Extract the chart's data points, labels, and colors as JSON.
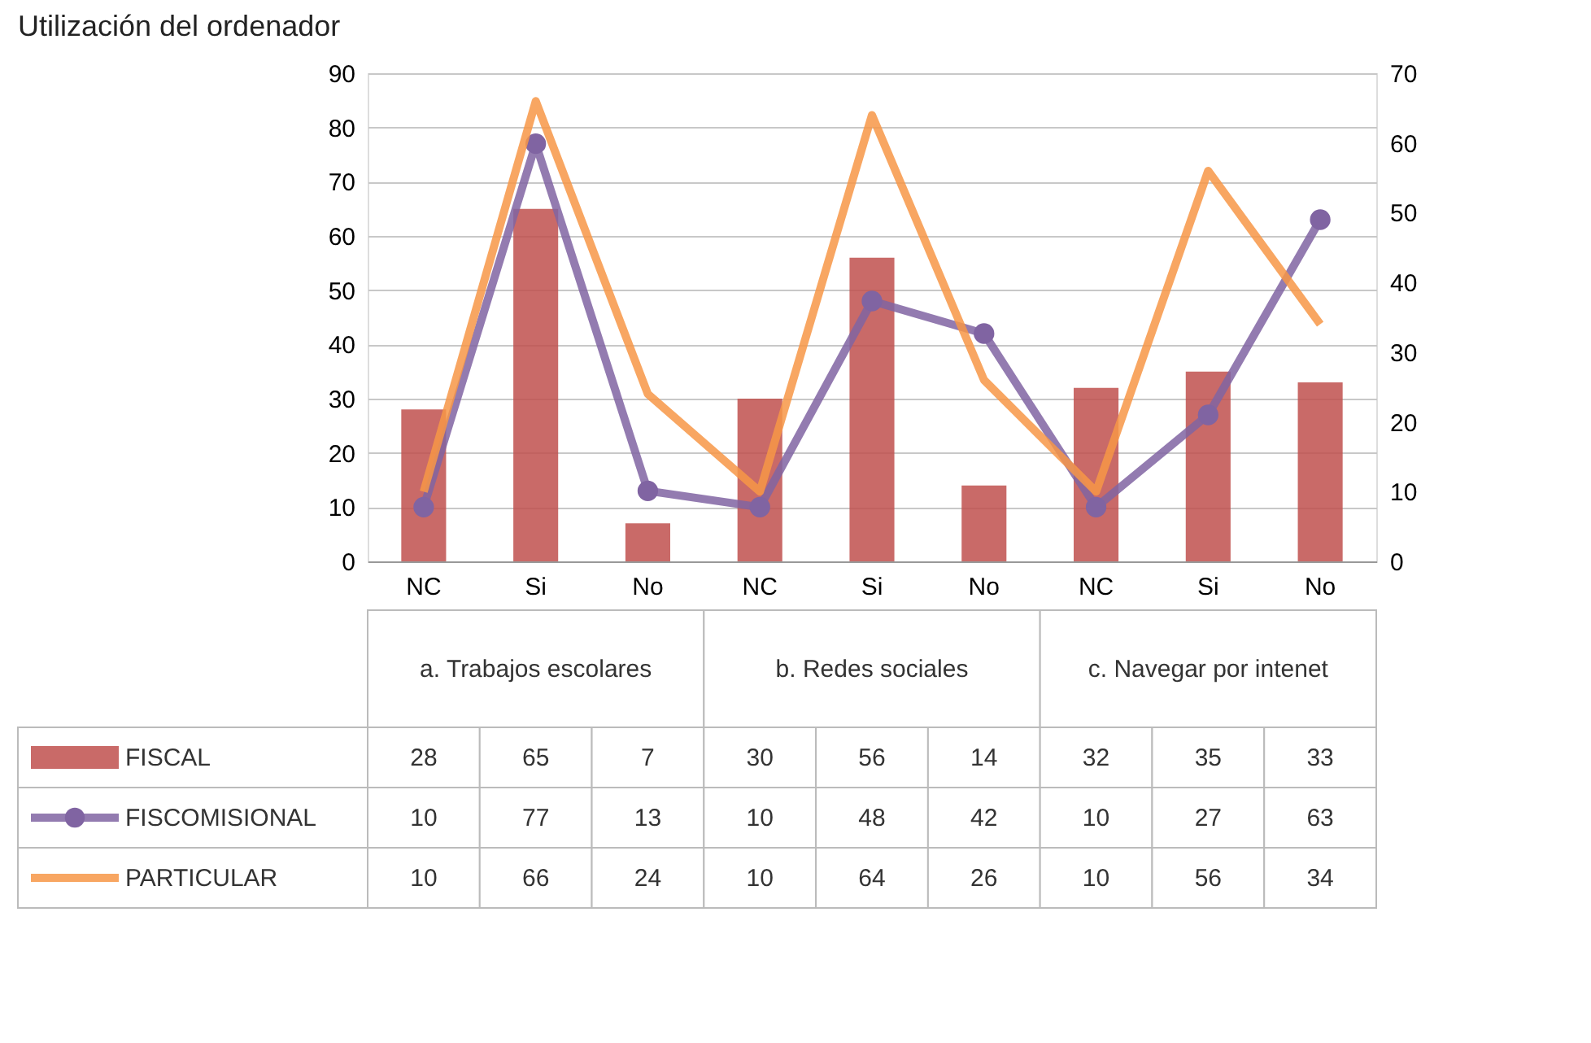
{
  "chart_data": {
    "type": "bar",
    "title": "Utilización del ordenador",
    "categories": [
      "NC",
      "Si",
      "No",
      "NC",
      "Si",
      "No",
      "NC",
      "Si",
      "No"
    ],
    "annotations": [
      "a. Trabajos escolares",
      "b. Redes sociales",
      "c. Navegar por intenet"
    ],
    "series": [
      {
        "name": "FISCAL",
        "type": "bar",
        "color": "#c0504d",
        "values": [
          28,
          65,
          7,
          30,
          56,
          14,
          32,
          35,
          33
        ]
      },
      {
        "name": "FISCOMISIONAL",
        "type": "line",
        "color": "#8064a2",
        "marker": "circle",
        "values": [
          10,
          77,
          13,
          10,
          48,
          42,
          10,
          27,
          63
        ]
      },
      {
        "name": "PARTICULAR",
        "type": "line",
        "color": "#f79646",
        "axis": "y2",
        "marker": "none",
        "values": [
          10,
          66,
          24,
          10,
          64,
          26,
          10,
          56,
          34
        ]
      }
    ],
    "ylim": [
      0,
      90
    ],
    "yticks": [
      0,
      10,
      20,
      30,
      40,
      50,
      60,
      70,
      80,
      90
    ],
    "y2lim": [
      0,
      70
    ],
    "y2ticks": [
      0,
      10,
      20,
      30,
      40,
      50,
      60,
      70
    ],
    "grid": "y",
    "legend": "bottom left",
    "data_labels": true
  }
}
